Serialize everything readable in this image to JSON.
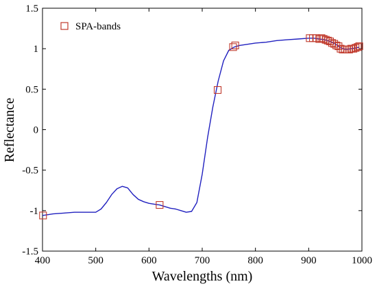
{
  "chart_data": {
    "type": "line",
    "title": "",
    "xlabel": "Wavelengths (nm)",
    "ylabel": "Reflectance",
    "xlim": [
      400,
      1000
    ],
    "ylim": [
      -1.5,
      1.5
    ],
    "xticks": [
      400,
      500,
      600,
      700,
      800,
      900,
      1000
    ],
    "yticks": [
      -1.5,
      -1,
      -0.5,
      0,
      0.5,
      1,
      1.5
    ],
    "xtick_labels": [
      "400",
      "500",
      "600",
      "700",
      "800",
      "900",
      "1000"
    ],
    "ytick_labels": [
      "-1.5",
      "-1",
      "-0.5",
      "0",
      "0.5",
      "1",
      "1.5"
    ],
    "grid": false,
    "legend_position": "top-left",
    "line_color": "#1f1fbf",
    "marker_color": "#c0392b",
    "series": [
      {
        "name": "",
        "kind": "line",
        "x": [
          400,
          420,
          440,
          460,
          480,
          500,
          510,
          520,
          530,
          540,
          550,
          560,
          570,
          580,
          590,
          600,
          610,
          620,
          630,
          640,
          650,
          660,
          670,
          680,
          690,
          700,
          710,
          720,
          730,
          740,
          750,
          760,
          770,
          780,
          800,
          820,
          840,
          860,
          880,
          900,
          910,
          920,
          930,
          940,
          950,
          960,
          970,
          980,
          990,
          995
        ],
        "y": [
          -1.06,
          -1.04,
          -1.03,
          -1.02,
          -1.02,
          -1.02,
          -0.98,
          -0.9,
          -0.8,
          -0.73,
          -0.7,
          -0.72,
          -0.8,
          -0.86,
          -0.89,
          -0.91,
          -0.92,
          -0.93,
          -0.95,
          -0.97,
          -0.98,
          -1.0,
          -1.02,
          -1.01,
          -0.9,
          -0.55,
          -0.1,
          0.28,
          0.6,
          0.85,
          0.98,
          1.02,
          1.04,
          1.05,
          1.07,
          1.08,
          1.1,
          1.11,
          1.12,
          1.13,
          1.13,
          1.12,
          1.11,
          1.09,
          1.06,
          1.01,
          0.99,
          1.0,
          1.01,
          1.02
        ]
      },
      {
        "name": "SPA-bands",
        "kind": "markers",
        "x": [
          401,
          620,
          729,
          758,
          762,
          902,
          908,
          914,
          920,
          924,
          928,
          932,
          936,
          940,
          944,
          948,
          952,
          956,
          960,
          964,
          968,
          972,
          976,
          980,
          984,
          988,
          992,
          995
        ],
        "y": [
          -1.06,
          -0.93,
          0.49,
          1.02,
          1.04,
          1.13,
          1.13,
          1.13,
          1.12,
          1.13,
          1.12,
          1.11,
          1.1,
          1.09,
          1.07,
          1.06,
          1.04,
          1.03,
          1.0,
          0.99,
          0.99,
          0.99,
          0.99,
          1.0,
          1.0,
          1.01,
          1.02,
          1.03
        ]
      }
    ]
  }
}
